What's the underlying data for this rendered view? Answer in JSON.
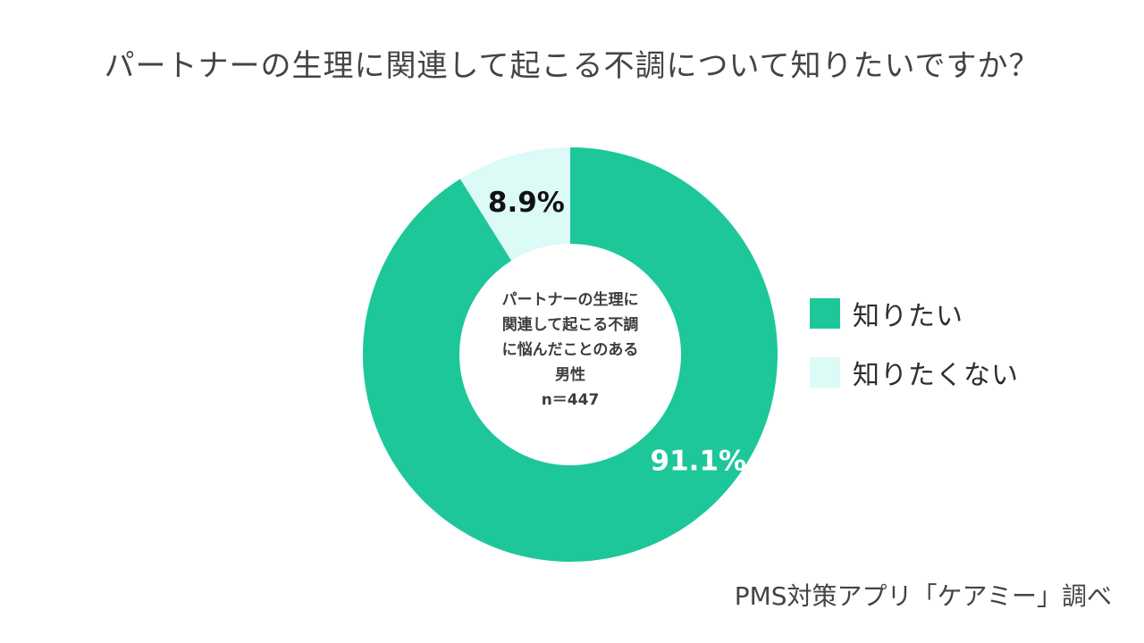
{
  "chart_data": {
    "type": "pie",
    "style": "donut",
    "title": "パートナーの生理に関連して起こる不調について知りたいですか？",
    "center_label": [
      "パートナーの生理に",
      "関連して起こる不調",
      "に悩んだことのある",
      "男性",
      "n＝447"
    ],
    "slices": [
      {
        "label": "知りたい",
        "value": 91.1,
        "display": "91.1%",
        "color": "#1dc79a",
        "label_color": "#ffffff"
      },
      {
        "label": "知りたくない",
        "value": 8.9,
        "display": "8.9%",
        "color": "#dcfaf6",
        "label_color": "#111111"
      }
    ],
    "legend_position": "right",
    "source": "PMS対策アプリ「ケアミー」調べ"
  }
}
